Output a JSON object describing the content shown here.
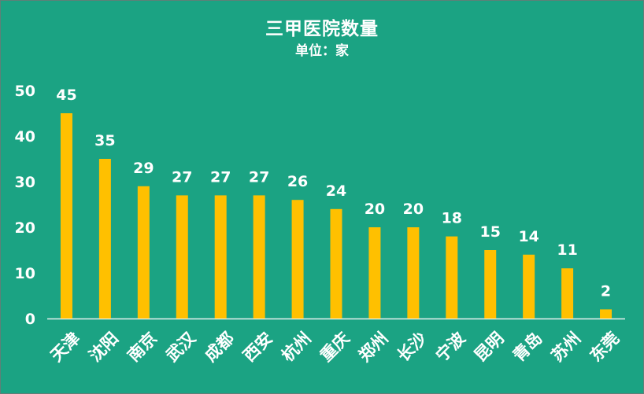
{
  "chart": {
    "title": "三甲医院数量",
    "subtitle": "单位：家"
  },
  "colors": {
    "background": "#1ba383",
    "bar": "#ffc000",
    "text": "#ffffff",
    "axis": "#e8f0ee"
  },
  "chart_data": {
    "type": "bar",
    "title": "三甲医院数量",
    "subtitle": "单位：家",
    "categories": [
      "天津",
      "沈阳",
      "南京",
      "武汉",
      "成都",
      "西安",
      "杭州",
      "重庆",
      "郑州",
      "长沙",
      "宁波",
      "昆明",
      "青岛",
      "苏州",
      "东莞"
    ],
    "values": [
      45,
      35,
      29,
      27,
      27,
      27,
      26,
      24,
      20,
      20,
      18,
      15,
      14,
      11,
      2
    ],
    "yticks": [
      0,
      10,
      20,
      30,
      40,
      50
    ],
    "ylim": [
      0,
      50
    ],
    "xlabel": "",
    "ylabel": "",
    "grid": false,
    "legend": "none",
    "data_labels": true
  }
}
